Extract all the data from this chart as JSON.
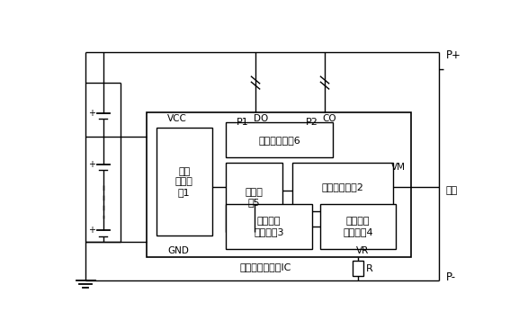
{
  "bg_color": "#ffffff",
  "line_color": "#000000",
  "fig_width": 5.67,
  "fig_height": 3.66,
  "dpi": 100,
  "label_main_ic": "多节锂电池保护IC",
  "label_vcc": "VCC",
  "label_gnd": "GND",
  "label_do": "DO",
  "label_co": "CO",
  "label_vm": "VM",
  "label_vr": "VR",
  "label_p1": "P1",
  "label_p2": "P2",
  "label_pplus": "P+",
  "label_pminus": "P-",
  "label_output": "输出",
  "label_R": "R",
  "label_b1": "电压\n采样电\n路1",
  "label_b2": "电压采样电路2",
  "label_b3": "基准电流\n产生电路3",
  "label_b4": "电压可调\n控制电路4",
  "label_b5": "比较电\n路5",
  "label_b6": "逻辑控制电路6"
}
